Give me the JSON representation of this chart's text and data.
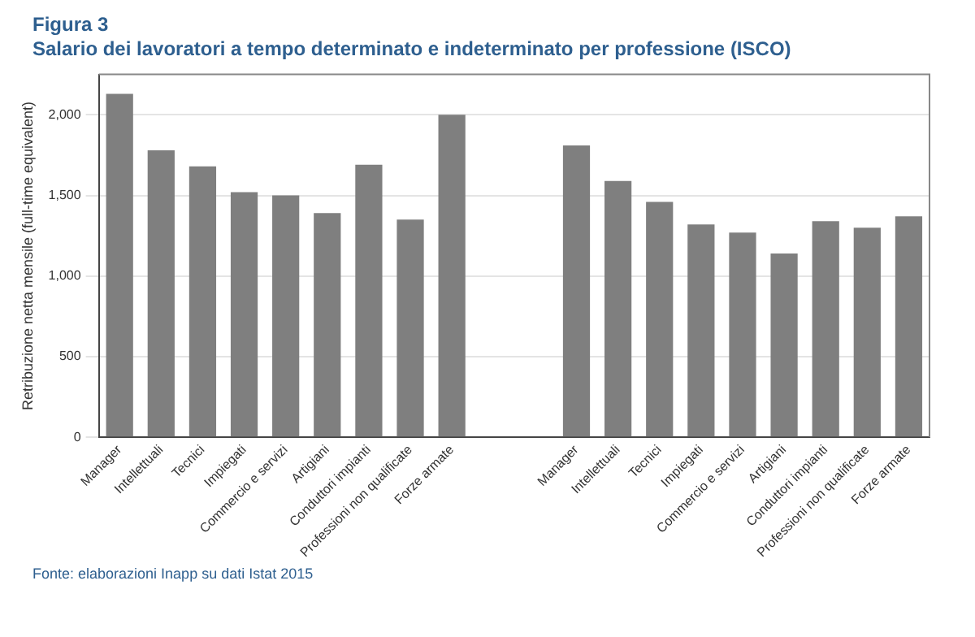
{
  "chart_data": {
    "type": "bar",
    "title": "Figura 3",
    "subtitle": "Salario dei lavoratori a tempo determinato e indeterminato per professione (ISCO)",
    "ylabel": "Retribuzione netta mensile (full-time equivalent)",
    "categories": [
      "Manager",
      "Intellettuali",
      "Tecnici",
      "Impiegati",
      "Commercio e servizi",
      "Artigiani",
      "Conduttori impianti",
      "Professioni non qualificate",
      "Forze armate",
      null,
      null,
      "Manager",
      "Intellettuali",
      "Tecnici",
      "Impiegati",
      "Commercio e servizi",
      "Artigiani",
      "Conduttori impianti",
      "Professioni non qualificate",
      "Forze armate"
    ],
    "values": [
      2130,
      1780,
      1680,
      1520,
      1500,
      1390,
      1690,
      1350,
      2000,
      null,
      null,
      1810,
      1590,
      1460,
      1320,
      1270,
      1140,
      1340,
      1300,
      1370
    ],
    "color": "#7f7f7f",
    "ylim": [
      0,
      2250
    ],
    "yticks": [
      0,
      500,
      {
        "value": 1000,
        "label": "1,000"
      },
      {
        "value": 1500,
        "label": "1,500"
      },
      {
        "value": 2000,
        "label": "2,000"
      }
    ],
    "grid": "y",
    "legend": false,
    "annotations": [
      "Fonte: elaborazioni Inapp su dati Istat 2015"
    ]
  }
}
